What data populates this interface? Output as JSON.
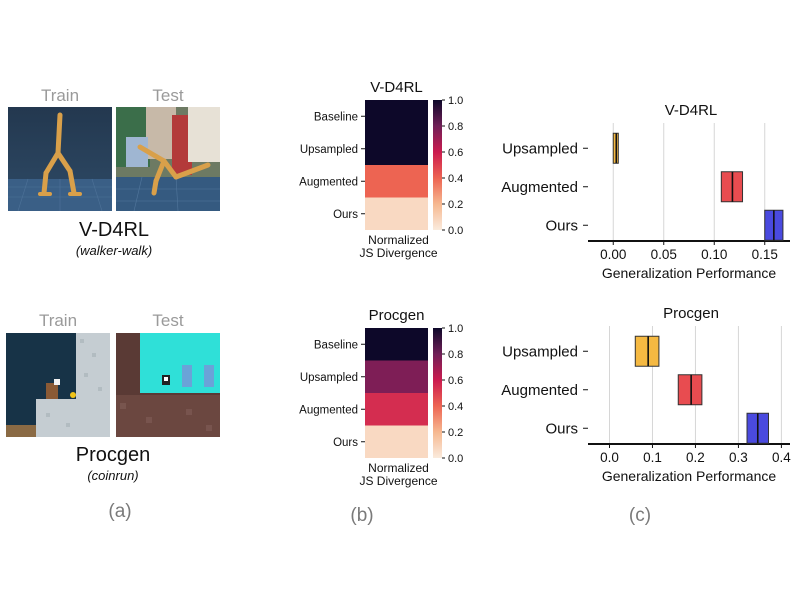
{
  "panel_a": {
    "label": "(a)",
    "envs": [
      {
        "title": "V-D4RL",
        "subtitle": "(walker-walk)",
        "train_label": "Train",
        "test_label": "Test"
      },
      {
        "title": "Procgen",
        "subtitle": "(coinrun)",
        "train_label": "Train",
        "test_label": "Test"
      }
    ]
  },
  "panel_b": {
    "label": "(b)"
  },
  "panel_c": {
    "label": "(c)"
  },
  "chart_data": [
    {
      "type": "heatmap",
      "title": "V-D4RL",
      "categories": [
        "Baseline",
        "Upsampled",
        "Augmented",
        "Ours"
      ],
      "values": [
        1.0,
        1.0,
        0.4,
        0.07
      ],
      "colorbar": {
        "range": [
          0.0,
          1.0
        ],
        "ticks": [
          "0.0",
          "0.2",
          "0.4",
          "0.6",
          "0.8",
          "1.0"
        ],
        "label": "Normalized\nJS Divergence"
      }
    },
    {
      "type": "heatmap",
      "title": "Procgen",
      "categories": [
        "Baseline",
        "Upsampled",
        "Augmented",
        "Ours"
      ],
      "values": [
        1.0,
        0.77,
        0.55,
        0.07
      ],
      "colorbar": {
        "range": [
          0.0,
          1.0
        ],
        "ticks": [
          "0.0",
          "0.2",
          "0.4",
          "0.6",
          "0.8",
          "1.0"
        ],
        "label": "Normalized\nJS Divergence"
      }
    },
    {
      "type": "box",
      "title": "V-D4RL",
      "xlabel": "Generalization Performance",
      "xlim": [
        -0.025,
        0.175
      ],
      "xticks": [
        "0.00",
        "0.05",
        "0.10",
        "0.15"
      ],
      "categories": [
        "Upsampled",
        "Augmented",
        "Ours"
      ],
      "series": [
        {
          "q1": 0.0,
          "median": 0.003,
          "q3": 0.005,
          "color": "#f5b942"
        },
        {
          "q1": 0.107,
          "median": 0.118,
          "q3": 0.128,
          "color": "#e84c50"
        },
        {
          "q1": 0.15,
          "median": 0.159,
          "q3": 0.168,
          "color": "#4a4adf"
        }
      ]
    },
    {
      "type": "box",
      "title": "Procgen",
      "xlabel": "Generalization Performance",
      "xlim": [
        -0.05,
        0.42
      ],
      "xticks": [
        "0.0",
        "0.1",
        "0.2",
        "0.3",
        "0.4"
      ],
      "categories": [
        "Upsampled",
        "Augmented",
        "Ours"
      ],
      "series": [
        {
          "q1": 0.06,
          "median": 0.09,
          "q3": 0.115,
          "color": "#f5b942"
        },
        {
          "q1": 0.16,
          "median": 0.19,
          "q3": 0.215,
          "color": "#e84c50"
        },
        {
          "q1": 0.32,
          "median": 0.345,
          "q3": 0.37,
          "color": "#4a4adf"
        }
      ]
    }
  ]
}
